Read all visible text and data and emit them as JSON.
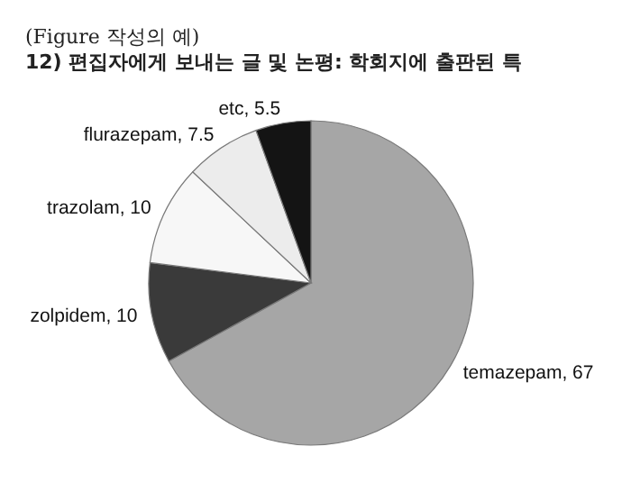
{
  "chart_data": {
    "type": "pie",
    "title": "(Figure 작성의 예)",
    "subtitle": "12) 편집자에게 보내는 글 및 논평: 학회지에 출판된 특",
    "categories": [
      "temazepam",
      "zolpidem",
      "trazolam",
      "flurazepam",
      "etc"
    ],
    "values": [
      67,
      10,
      10,
      7.5,
      5.5
    ],
    "colors": [
      "#a6a6a6",
      "#3a3a3a",
      "#f7f7f7",
      "#ececec",
      "#141414"
    ],
    "value_labels": [
      ", 67",
      ", 10",
      ", 10",
      ", 7.5",
      ", 5.5"
    ],
    "legend": false
  }
}
